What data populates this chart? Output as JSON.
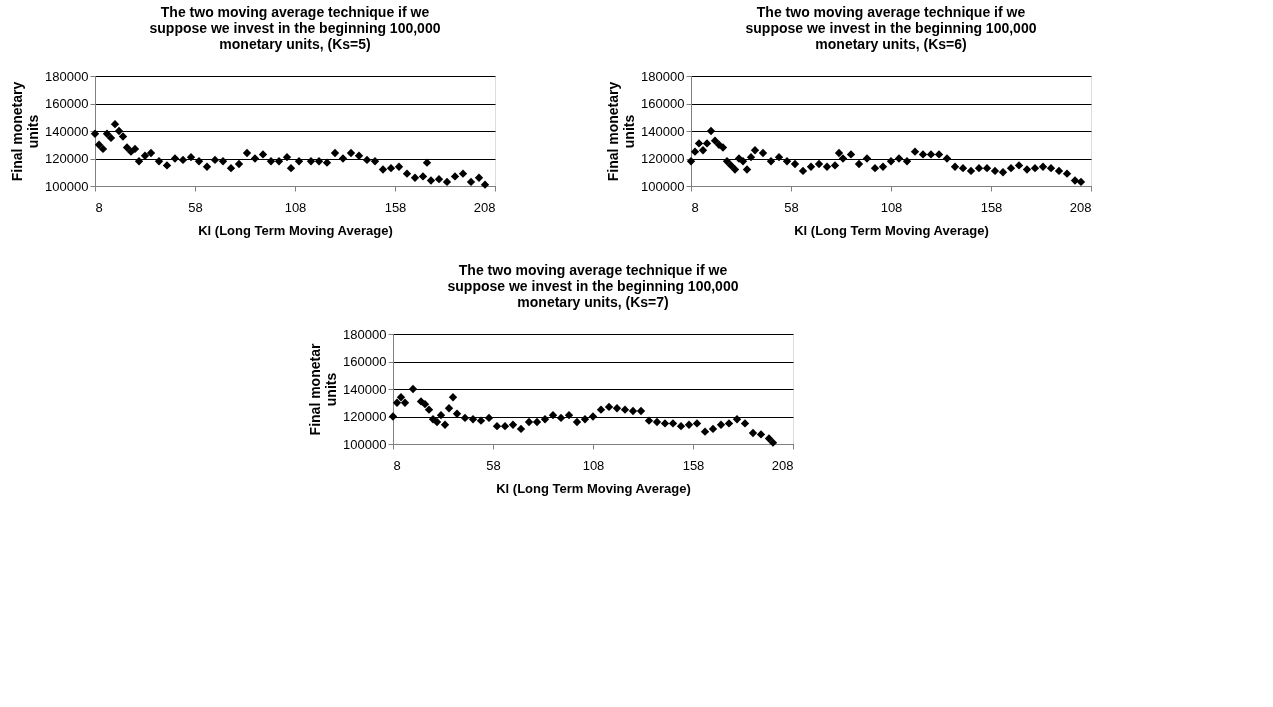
{
  "chart_data": [
    {
      "type": "scatter",
      "title": "The two moving average technique  if we suppose we invest in the beginning 100,000 monetary units, (Ks=5)",
      "xlabel": "Kl (Long Term Moving Average)",
      "ylabel": "Final monetary units",
      "xlim": [
        8,
        208
      ],
      "xticks": [
        8,
        58,
        108,
        158,
        208
      ],
      "ylim": [
        100000,
        180000
      ],
      "yticks": [
        100000,
        120000,
        140000,
        160000,
        180000
      ],
      "grid": "y",
      "marker": "diamond",
      "series": [
        {
          "color": "#000000",
          "x": [
            8,
            10,
            12,
            14,
            16,
            18,
            20,
            22,
            24,
            26,
            28,
            30,
            33,
            36,
            40,
            44,
            48,
            52,
            56,
            60,
            64,
            68,
            72,
            76,
            80,
            84,
            88,
            92,
            96,
            100,
            104,
            106,
            110,
            116,
            120,
            124,
            128,
            132,
            136,
            140,
            144,
            148,
            152,
            156,
            160,
            164,
            168,
            172,
            174,
            176,
            180,
            184,
            188,
            192,
            196,
            200,
            203
          ],
          "values": [
            138000,
            130000,
            127000,
            138000,
            135000,
            145000,
            140000,
            136000,
            128000,
            125000,
            127000,
            118000,
            122000,
            124000,
            118000,
            115000,
            120000,
            119000,
            121000,
            118000,
            114000,
            119000,
            118000,
            113000,
            116000,
            124000,
            120000,
            123000,
            118000,
            118000,
            121000,
            113000,
            118000,
            118000,
            118000,
            117000,
            124000,
            120000,
            124000,
            122000,
            119000,
            118000,
            112000,
            113000,
            114000,
            109000,
            106000,
            107000,
            117000,
            104000,
            105000,
            103000,
            107000,
            109000,
            103000,
            106000,
            101000
          ]
        }
      ]
    },
    {
      "type": "scatter",
      "title": "The two moving average technique  if we suppose we invest in the beginning 100,000 monetary units, (Ks=6)",
      "xlabel": "Kl (Long Term Moving Average)",
      "ylabel": "Final monetary units",
      "xlim": [
        8,
        208
      ],
      "xticks": [
        8,
        58,
        108,
        158,
        208
      ],
      "ylim": [
        100000,
        180000
      ],
      "yticks": [
        100000,
        120000,
        140000,
        160000,
        180000
      ],
      "grid": "y",
      "marker": "diamond",
      "series": [
        {
          "color": "#000000",
          "x": [
            8,
            10,
            12,
            14,
            16,
            18,
            20,
            22,
            24,
            26,
            28,
            30,
            32,
            34,
            36,
            38,
            40,
            44,
            48,
            52,
            56,
            60,
            64,
            68,
            72,
            76,
            80,
            82,
            84,
            88,
            92,
            96,
            100,
            104,
            108,
            112,
            116,
            120,
            124,
            128,
            132,
            136,
            140,
            144,
            148,
            152,
            156,
            160,
            164,
            168,
            172,
            176,
            180,
            184,
            188,
            192,
            196,
            200,
            203
          ],
          "values": [
            118000,
            125000,
            131000,
            126000,
            131000,
            140000,
            133000,
            130000,
            128000,
            118000,
            115000,
            112000,
            120000,
            118000,
            112000,
            121000,
            126000,
            124000,
            118000,
            121000,
            118000,
            116000,
            111000,
            114000,
            116000,
            114000,
            115000,
            124000,
            120000,
            123000,
            116000,
            120000,
            113000,
            114000,
            118000,
            120000,
            118000,
            125000,
            123000,
            123000,
            123000,
            120000,
            114000,
            113000,
            111000,
            113000,
            113000,
            111000,
            110000,
            113000,
            115000,
            112000,
            113000,
            114000,
            113000,
            111000,
            109000,
            104000,
            103000
          ]
        }
      ]
    },
    {
      "type": "scatter",
      "title": "The two moving average technique  if we suppose we invest in the beginning 100,000 monetary units, (Ks=7)",
      "xlabel": "Kl (Long Term Moving Average)",
      "ylabel": "Final monetar units",
      "xlim": [
        8,
        208
      ],
      "xticks": [
        8,
        58,
        108,
        158,
        208
      ],
      "ylim": [
        100000,
        180000
      ],
      "yticks": [
        100000,
        120000,
        140000,
        160000,
        180000
      ],
      "grid": "y",
      "marker": "diamond",
      "series": [
        {
          "color": "#000000",
          "x": [
            8,
            10,
            12,
            14,
            18,
            22,
            24,
            26,
            28,
            30,
            32,
            34,
            36,
            38,
            40,
            44,
            48,
            52,
            56,
            60,
            64,
            68,
            72,
            76,
            80,
            84,
            88,
            92,
            96,
            100,
            104,
            108,
            112,
            116,
            120,
            124,
            128,
            132,
            136,
            140,
            144,
            148,
            152,
            156,
            160,
            164,
            168,
            172,
            176,
            180,
            184,
            188,
            192,
            196,
            198
          ],
          "values": [
            120000,
            130000,
            134000,
            130000,
            140000,
            131000,
            129000,
            125000,
            118000,
            116000,
            121000,
            114000,
            126000,
            134000,
            122000,
            119000,
            118000,
            117000,
            119000,
            113000,
            113000,
            114000,
            111000,
            116000,
            116000,
            118000,
            121000,
            119000,
            121000,
            116000,
            118000,
            120000,
            125000,
            127000,
            126000,
            125000,
            124000,
            124000,
            117000,
            116000,
            115000,
            115000,
            113000,
            114000,
            115000,
            109000,
            111000,
            114000,
            115000,
            118000,
            115000,
            108000,
            107000,
            104000,
            101000
          ]
        }
      ]
    }
  ]
}
